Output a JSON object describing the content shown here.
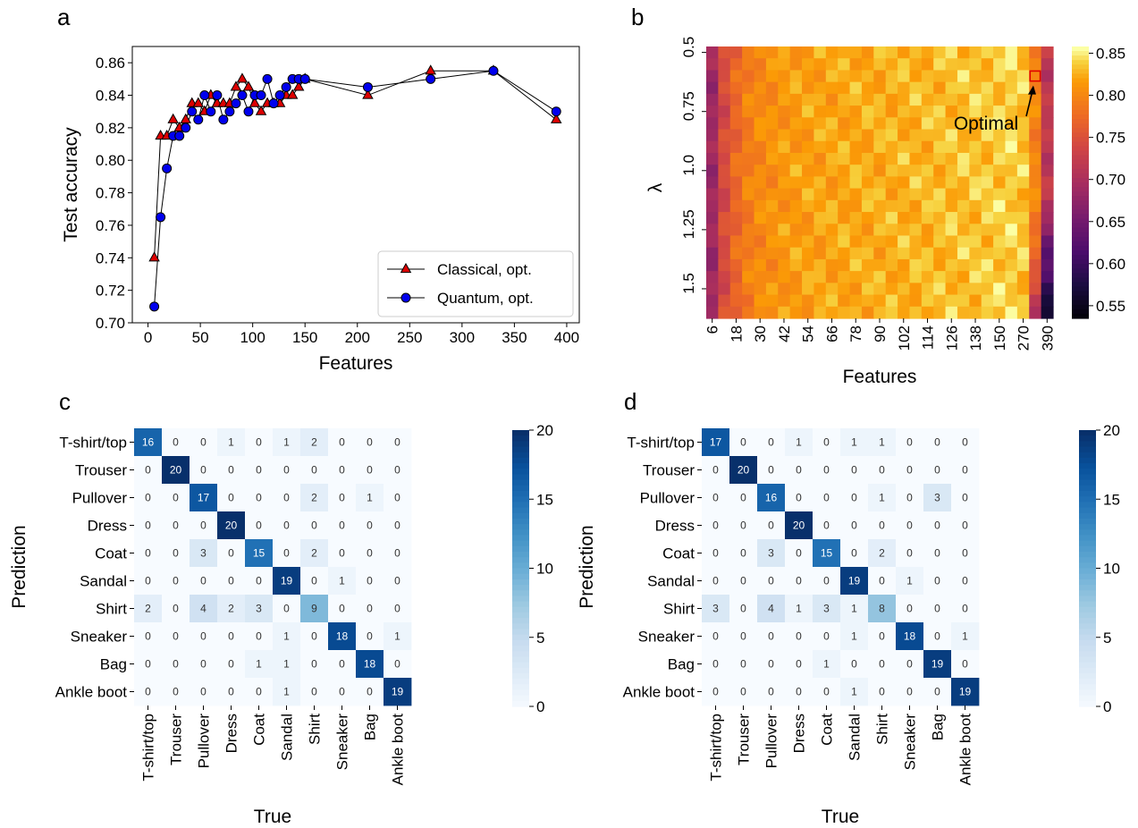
{
  "panels": {
    "a": "a",
    "b": "b",
    "c": "c",
    "d": "d"
  },
  "chart_data": [
    {
      "id": "a",
      "type": "line",
      "xlabel": "Features",
      "ylabel": "Test accuracy",
      "xlim": [
        -15,
        412
      ],
      "ylim": [
        0.7,
        0.87
      ],
      "xticks": [
        0,
        50,
        100,
        150,
        200,
        250,
        300,
        350,
        400
      ],
      "yticks": [
        0.7,
        0.72,
        0.74,
        0.76,
        0.78,
        0.8,
        0.82,
        0.84,
        0.86
      ],
      "grid": false,
      "legend": "lower-right",
      "series": [
        {
          "name": "Classical, opt.",
          "marker": "triangle",
          "color": "#dd0000",
          "x": [
            6,
            12,
            18,
            24,
            30,
            36,
            42,
            48,
            54,
            60,
            66,
            72,
            78,
            84,
            90,
            96,
            102,
            108,
            114,
            120,
            126,
            132,
            138,
            144,
            150,
            210,
            270,
            330,
            390
          ],
          "y": [
            0.74,
            0.815,
            0.815,
            0.825,
            0.82,
            0.825,
            0.835,
            0.835,
            0.83,
            0.84,
            0.835,
            0.835,
            0.835,
            0.845,
            0.85,
            0.845,
            0.835,
            0.83,
            0.835,
            0.835,
            0.835,
            0.84,
            0.84,
            0.845,
            0.85,
            0.84,
            0.855,
            0.855,
            0.825
          ]
        },
        {
          "name": "Quantum, opt.",
          "marker": "circle",
          "color": "#0000ee",
          "x": [
            6,
            12,
            18,
            24,
            30,
            36,
            42,
            48,
            54,
            60,
            66,
            72,
            78,
            84,
            90,
            96,
            102,
            108,
            114,
            120,
            126,
            132,
            138,
            144,
            150,
            210,
            270,
            330,
            390
          ],
          "y": [
            0.71,
            0.765,
            0.795,
            0.815,
            0.815,
            0.82,
            0.83,
            0.825,
            0.84,
            0.83,
            0.84,
            0.825,
            0.83,
            0.835,
            0.84,
            0.83,
            0.84,
            0.84,
            0.85,
            0.835,
            0.84,
            0.845,
            0.85,
            0.85,
            0.85,
            0.845,
            0.85,
            0.855,
            0.83
          ]
        }
      ]
    },
    {
      "id": "b",
      "type": "heatmap",
      "xlabel": "Features",
      "ylabel": "λ",
      "x_tick_labels": [
        "6",
        "18",
        "30",
        "42",
        "54",
        "66",
        "78",
        "90",
        "102",
        "114",
        "126",
        "138",
        "150",
        "270",
        "390"
      ],
      "y_tick_labels": [
        "0.5",
        "0.75",
        "1.0",
        "1.25",
        "1.5"
      ],
      "n_cols": 29,
      "n_rows": 23,
      "colorscale": "inferno",
      "vmin": 0.535,
      "vmax": 0.858,
      "colorbar_ticks": [
        0.55,
        0.6,
        0.65,
        0.7,
        0.75,
        0.8,
        0.85
      ],
      "annotation": {
        "text": "Optimal",
        "col": 27,
        "row": 2
      },
      "col_values": [
        0.69,
        0.745,
        0.775,
        0.795,
        0.805,
        0.81,
        0.815,
        0.818,
        0.82,
        0.822,
        0.823,
        0.824,
        0.825,
        0.826,
        0.827,
        0.828,
        0.829,
        0.83,
        0.831,
        0.833,
        0.834,
        0.835,
        0.836,
        0.838,
        0.84,
        0.842,
        0.836,
        0.8,
        0.72
      ]
    },
    {
      "id": "c",
      "type": "heatmap",
      "xlabel": "True",
      "ylabel": "Prediction",
      "labels": [
        "T-shirt/top",
        "Trouser",
        "Pullover",
        "Dress",
        "Coat",
        "Sandal",
        "Shirt",
        "Sneaker",
        "Bag",
        "Ankle boot"
      ],
      "vmin": 0,
      "vmax": 20,
      "colorbar_ticks": [
        0,
        5,
        10,
        15,
        20
      ],
      "colorscale": "Blues",
      "matrix": [
        [
          16,
          0,
          0,
          1,
          0,
          1,
          2,
          0,
          0,
          0
        ],
        [
          0,
          20,
          0,
          0,
          0,
          0,
          0,
          0,
          0,
          0
        ],
        [
          0,
          0,
          17,
          0,
          0,
          0,
          2,
          0,
          1,
          0
        ],
        [
          0,
          0,
          0,
          20,
          0,
          0,
          0,
          0,
          0,
          0
        ],
        [
          0,
          0,
          3,
          0,
          15,
          0,
          2,
          0,
          0,
          0
        ],
        [
          0,
          0,
          0,
          0,
          0,
          19,
          0,
          1,
          0,
          0
        ],
        [
          2,
          0,
          4,
          2,
          3,
          0,
          9,
          0,
          0,
          0
        ],
        [
          0,
          0,
          0,
          0,
          0,
          1,
          0,
          18,
          0,
          1
        ],
        [
          0,
          0,
          0,
          0,
          1,
          1,
          0,
          0,
          18,
          0
        ],
        [
          0,
          0,
          0,
          0,
          0,
          1,
          0,
          0,
          0,
          19
        ]
      ]
    },
    {
      "id": "d",
      "type": "heatmap",
      "xlabel": "True",
      "ylabel": "Prediction",
      "labels": [
        "T-shirt/top",
        "Trouser",
        "Pullover",
        "Dress",
        "Coat",
        "Sandal",
        "Shirt",
        "Sneaker",
        "Bag",
        "Ankle boot"
      ],
      "vmin": 0,
      "vmax": 20,
      "colorbar_ticks": [
        0,
        5,
        10,
        15,
        20
      ],
      "colorscale": "Blues",
      "matrix": [
        [
          17,
          0,
          0,
          1,
          0,
          1,
          1,
          0,
          0,
          0
        ],
        [
          0,
          20,
          0,
          0,
          0,
          0,
          0,
          0,
          0,
          0
        ],
        [
          0,
          0,
          16,
          0,
          0,
          0,
          1,
          0,
          3,
          0
        ],
        [
          0,
          0,
          0,
          20,
          0,
          0,
          0,
          0,
          0,
          0
        ],
        [
          0,
          0,
          3,
          0,
          15,
          0,
          2,
          0,
          0,
          0
        ],
        [
          0,
          0,
          0,
          0,
          0,
          19,
          0,
          1,
          0,
          0
        ],
        [
          3,
          0,
          4,
          1,
          3,
          1,
          8,
          0,
          0,
          0
        ],
        [
          0,
          0,
          0,
          0,
          0,
          1,
          0,
          18,
          0,
          1
        ],
        [
          0,
          0,
          0,
          0,
          1,
          0,
          0,
          0,
          19,
          0
        ],
        [
          0,
          0,
          0,
          0,
          0,
          1,
          0,
          0,
          0,
          19
        ]
      ]
    }
  ]
}
